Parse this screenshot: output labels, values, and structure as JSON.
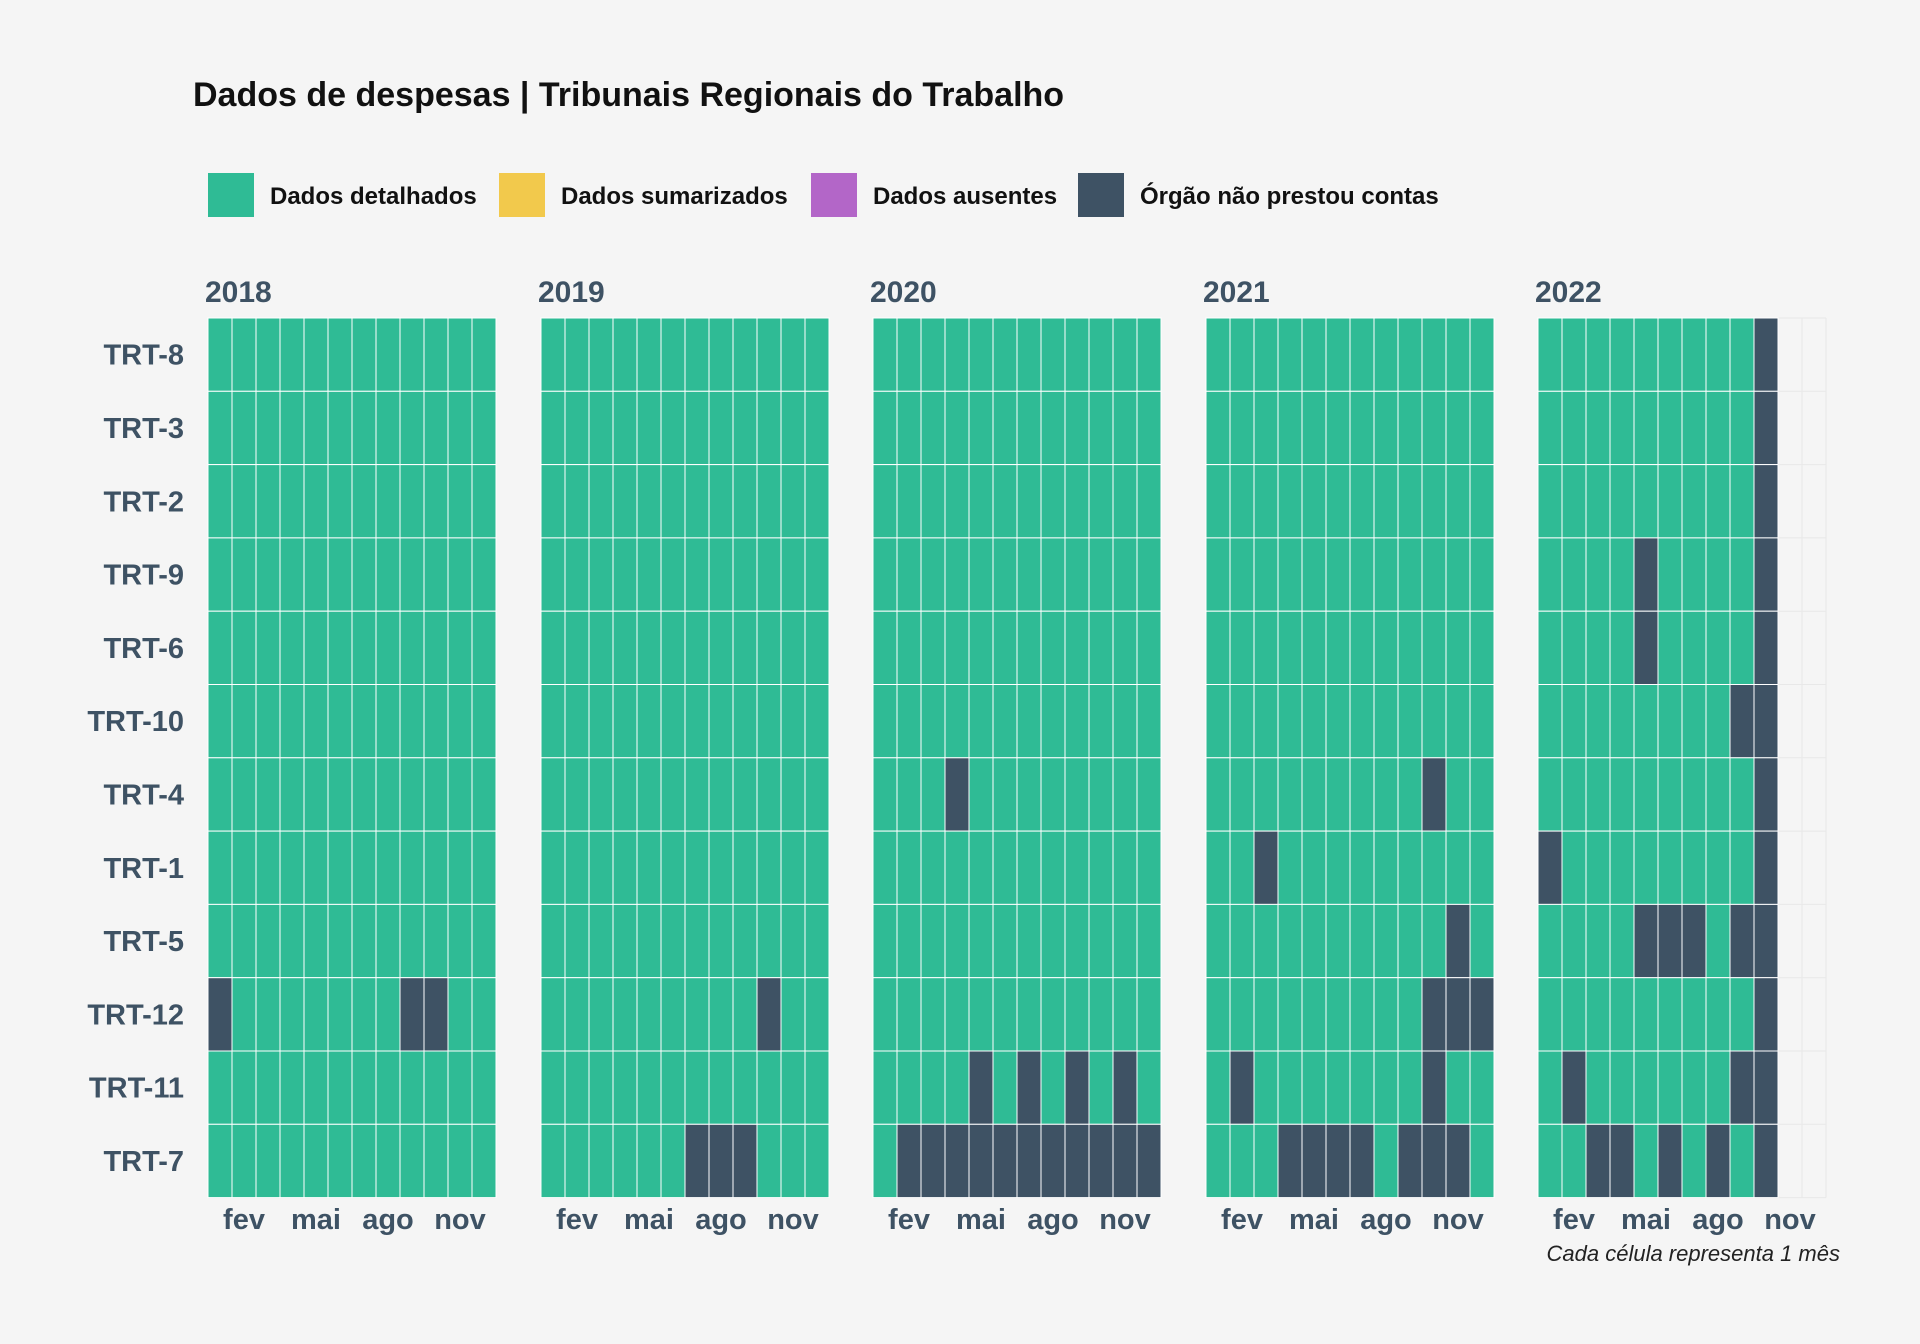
{
  "chart_data": {
    "type": "heatmap",
    "title": "Dados de despesas | Tribunais Regionais do Trabalho",
    "caption": "Cada célula representa 1 mês",
    "legend_position": "top-left",
    "legend": [
      {
        "key": "D",
        "label": "Dados detalhados",
        "color": "#2fbb95"
      },
      {
        "key": "S",
        "label": "Dados sumarizados",
        "color": "#f2c94c"
      },
      {
        "key": "A",
        "label": "Dados ausentes",
        "color": "#b366c8"
      },
      {
        "key": "N",
        "label": "Órgão não prestou contas",
        "color": "#3e5264"
      }
    ],
    "missing_color": "#f5f5f5",
    "rows": [
      "TRT-8",
      "TRT-3",
      "TRT-2",
      "TRT-9",
      "TRT-6",
      "TRT-10",
      "TRT-4",
      "TRT-1",
      "TRT-5",
      "TRT-12",
      "TRT-11",
      "TRT-7"
    ],
    "x_ticks": [
      {
        "month": 2,
        "label": "fev"
      },
      {
        "month": 5,
        "label": "mai"
      },
      {
        "month": 8,
        "label": "ago"
      },
      {
        "month": 11,
        "label": "nov"
      }
    ],
    "years": [
      {
        "year": "2018",
        "status": [
          "DDDDDDDDDDDD",
          "DDDDDDDDDDDD",
          "DDDDDDDDDDDD",
          "DDDDDDDDDDDD",
          "DDDDDDDDDDDD",
          "DDDDDDDDDDDD",
          "DDDDDDDDDDDD",
          "DDDDDDDDDDDD",
          "DDDDDDDDDDDD",
          "NDDDDDD DNNDD",
          "DDDDDDDDDDDD",
          "DDDDDDDDDDDD"
        ]
      },
      {
        "year": "2019",
        "status": [
          "DDDDDDDDDDDD",
          "DDDDDDDDDDDD",
          "DDDDDDDDDDDD",
          "DDDDDDDDDDDD",
          "DDDDDDDDDDDD",
          "DDDDDDDDDDDD",
          "DDDDDDDDDDDD",
          "DDDDDDDDDDDD",
          "DDDDDDDDDDDD",
          "DDDDDDDDDNDD",
          "DDDDDDDDDDDD",
          "DDDDDDNNNDDD"
        ]
      },
      {
        "year": "2020",
        "status": [
          "DDDDDDDDDDDD",
          "DDDDDDDDDDDD",
          "DDDDDDDDDDDD",
          "DDDDDDDDDDDD",
          "DDDDDDDDDDDD",
          "DDDDDDDDDDDD",
          "DDDNDDDDDDDD",
          "DDDDDDDDDDDD",
          "DDDDDDDDDDDD",
          "DDDDDDDDDDDD",
          "DDDDNDNDNDND",
          "DNNNNNNNNNNN"
        ]
      },
      {
        "year": "2021",
        "status": [
          "DDDDDDDDDDDD",
          "DDDDDDDDDDDD",
          "DDDDDDDDDDDD",
          "DDDDDDDDDDDD",
          "DDDDDDDDDDDD",
          "DDDDDDDDDDDD",
          "DDDDDDDDDNDD",
          "DDNDDDDDDDDD",
          "DDDDDDDDDDND",
          "DDDDDDDDDNNN",
          "DNDDDDDDDNDD",
          "DDDNNNNDNNND"
        ]
      },
      {
        "year": "2022",
        "status": [
          "DDDDDDDDDN..",
          "DDDDDDDDDN..",
          "DDDDDDDDDN..",
          "DDDDNDDDDN..",
          "DDDDNDDDDN..",
          "DDDDDDDDNN..",
          "DDDDDDDDDN..",
          "NDDDDDDDDN..",
          "DDDDNNNDNN..",
          "DDDDDDDDDN..",
          "DNDDDDDDNN..",
          "DDNNDNDNDN.."
        ]
      }
    ]
  }
}
